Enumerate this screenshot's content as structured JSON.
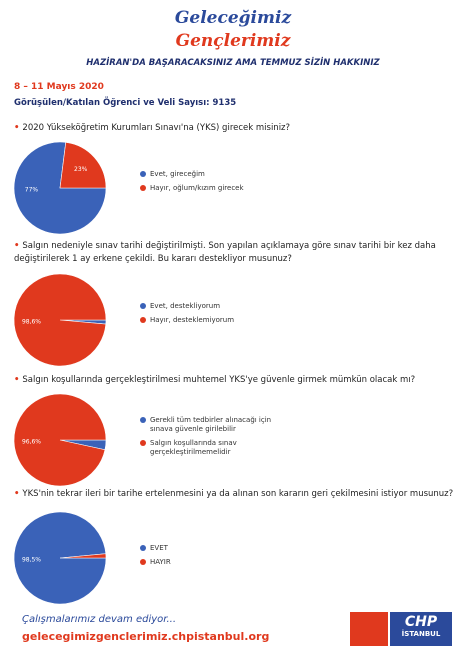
{
  "header": {
    "line1": "Geleceğimiz",
    "line2": "Gençlerimiz",
    "slogan": "HAZİRAN'DA BAŞARACAKSINIZ AMA TEMMUZ SİZİN HAKKINIZ",
    "date": "8 – 11 Mayıs 2020",
    "sample": "Görüşülen/Katılan Öğrenci ve Veli Sayısı: 9135"
  },
  "chart_data": [
    {
      "type": "pie",
      "title": "2020 Yükseköğretim Kurumları Sınavı'na (YKS) girecek misiniz?",
      "categories": [
        "Evet, gireceğim",
        "Hayır, oğlum/kızım girecek"
      ],
      "values": [
        77,
        23
      ],
      "value_labels": [
        "77%",
        "23%"
      ],
      "colors": [
        "#3a62b8",
        "#e0391e"
      ]
    },
    {
      "type": "pie",
      "title": "Salgın nedeniyle sınav tarihi değiştirilmişti. Son yapılan açıklamaya göre sınav tarihi bir kez daha değiştirilerek 1 ay erkene çekildi. Bu kararı destekliyor musunuz?",
      "categories": [
        "Evet, destekliyorum",
        "Hayır, desteklemiyorum"
      ],
      "values": [
        1.4,
        98.6
      ],
      "value_labels": [
        null,
        "98,6%"
      ],
      "colors": [
        "#3a62b8",
        "#e0391e"
      ]
    },
    {
      "type": "pie",
      "title": "Salgın koşullarında gerçekleştirilmesi muhtemel YKS'ye güvenle girmek mümkün olacak mı?",
      "categories": [
        "Gerekli tüm tedbirler alınacağı için sınava güvenle girilebilir",
        "Salgın koşullarında sınav gerçekleştirilmemelidir"
      ],
      "values": [
        3.4,
        96.6
      ],
      "value_labels": [
        null,
        "96,6%"
      ],
      "colors": [
        "#3a62b8",
        "#e0391e"
      ]
    },
    {
      "type": "pie",
      "title": "YKS'nin tekrar ileri bir tarihe ertelenmesini ya da alınan son kararın geri çekilmesini istiyor musunuz?",
      "categories": [
        "EVET",
        "HAYIR"
      ],
      "values": [
        98.5,
        1.5
      ],
      "value_labels": [
        "98,5%",
        null
      ],
      "colors": [
        "#3a62b8",
        "#e0391e"
      ]
    }
  ],
  "footer": {
    "tagline": "Çalışmalarımız devam ediyor...",
    "url": "gelecegimizgenclerimiz.chpistanbul.org",
    "logo_name": "CHP",
    "logo_city": "İSTANBUL"
  }
}
